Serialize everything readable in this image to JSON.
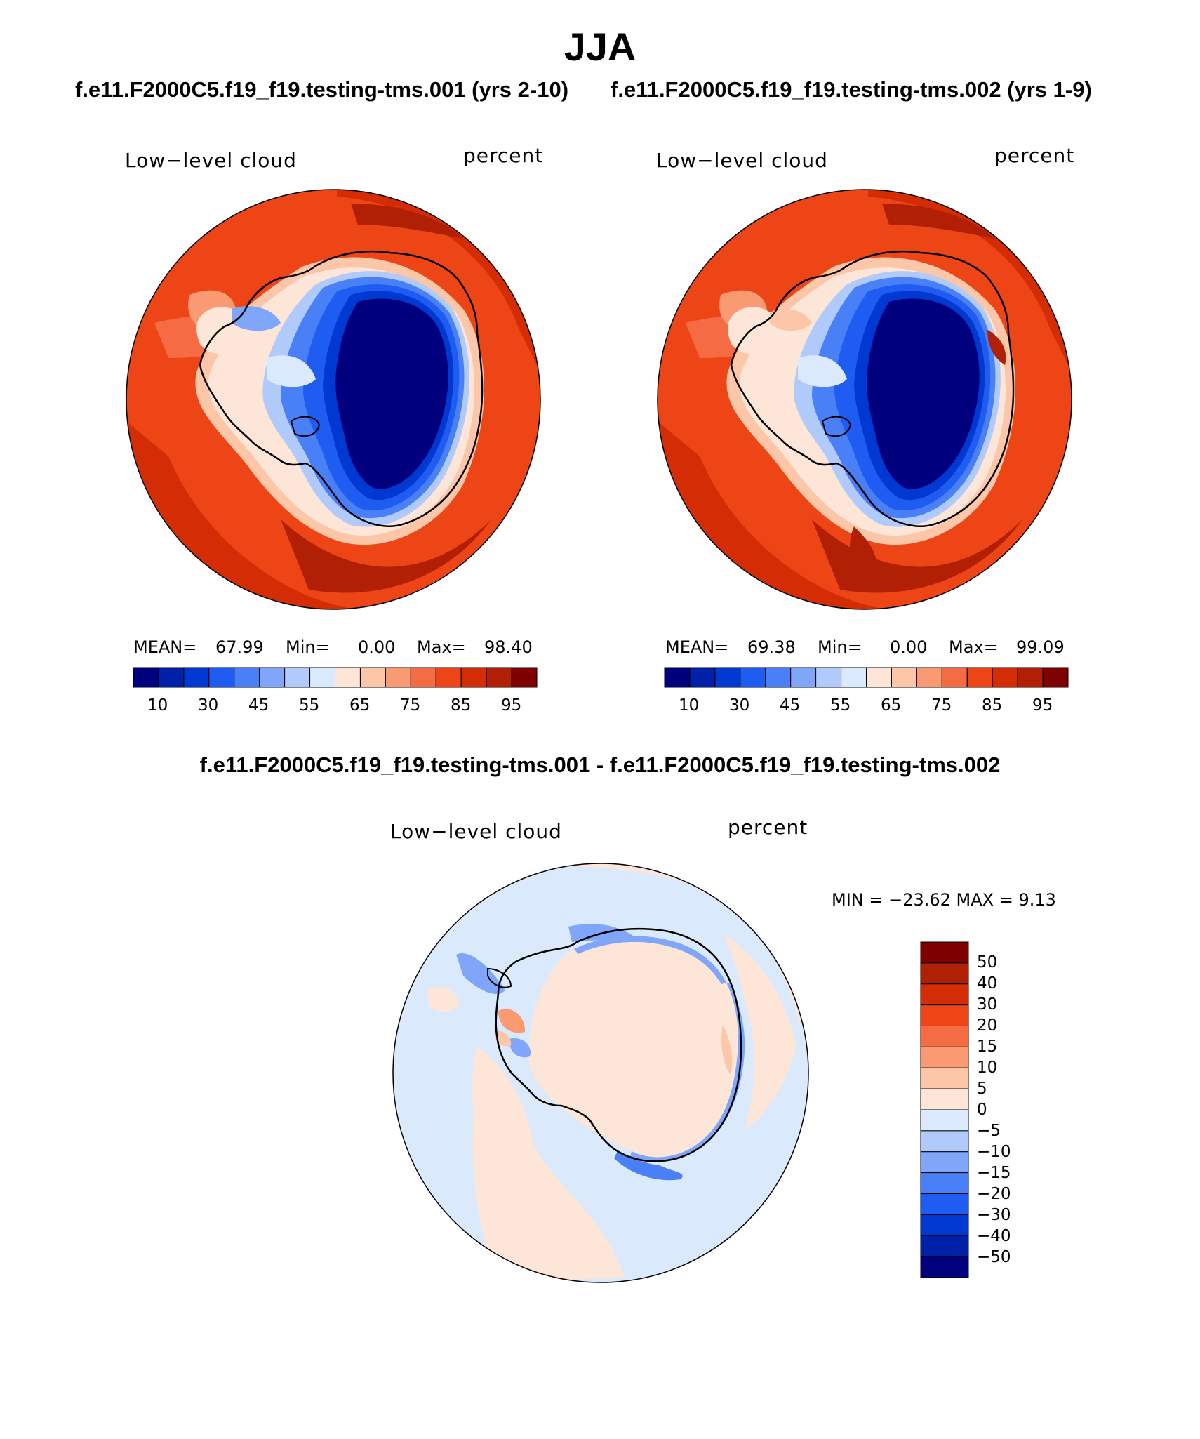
{
  "title": "JJA",
  "case_titles": {
    "left": "f.e11.F2000C5.f19_f19.testing-tms.001 (yrs 2-10)",
    "right": "f.e11.F2000C5.f19_f19.testing-tms.002 (yrs 1-9)"
  },
  "diff_title": "f.e11.F2000C5.f19_f19.testing-tms.001 - f.e11.F2000C5.f19_f19.testing-tms.002",
  "panels": [
    {
      "variable": "Low−level cloud",
      "units": "percent",
      "mean_label": "MEAN=",
      "mean": "67.99",
      "min_label": "Min=",
      "min": "0.00",
      "max_label": "Max=",
      "max": "98.40"
    },
    {
      "variable": "Low−level cloud",
      "units": "percent",
      "mean_label": "MEAN=",
      "mean": "69.38",
      "min_label": "Min=",
      "min": "0.00",
      "max_label": "Max=",
      "max": "99.09"
    }
  ],
  "diff_panel": {
    "variable": "Low−level cloud",
    "units": "percent",
    "minmax_text": "MIN = −23.62 MAX =    9.13"
  },
  "colors": {
    "field_scale": [
      "#00007f",
      "#0020a8",
      "#0038d2",
      "#1f5cf2",
      "#4a80f7",
      "#7fa6f9",
      "#b0cbfb",
      "#dbe9fd",
      "#fde6d7",
      "#fcc6a8",
      "#f99a73",
      "#f56b43",
      "#ed4516",
      "#d42d06",
      "#b11f04",
      "#7f0000"
    ],
    "diff_scale": [
      "#7f0000",
      "#b11f04",
      "#d42d06",
      "#ed4516",
      "#f56b43",
      "#f99a73",
      "#fcc6a8",
      "#fde6d7",
      "#dbe9fd",
      "#b0cbfb",
      "#7fa6f9",
      "#4a80f7",
      "#1f5cf2",
      "#0038d2",
      "#0020a8",
      "#00007f"
    ]
  },
  "chart_data": [
    {
      "type": "heatmap",
      "title": "f.e11.F2000C5.f19_f19.testing-tms.001 (yrs 2-10)",
      "projection": "south polar stereographic",
      "variable": "Low−level cloud",
      "units": "percent",
      "mean": 67.99,
      "min": 0.0,
      "max": 98.4,
      "colorbar_ticks": [
        "10",
        "30",
        "45",
        "55",
        "65",
        "75",
        "85",
        "95"
      ]
    },
    {
      "type": "heatmap",
      "title": "f.e11.F2000C5.f19_f19.testing-tms.002 (yrs 1-9)",
      "projection": "south polar stereographic",
      "variable": "Low−level cloud",
      "units": "percent",
      "mean": 69.38,
      "min": 0.0,
      "max": 99.09,
      "colorbar_ticks": [
        "10",
        "30",
        "45",
        "55",
        "65",
        "75",
        "85",
        "95"
      ]
    },
    {
      "type": "heatmap",
      "title": "f.e11.F2000C5.f19_f19.testing-tms.001 - f.e11.F2000C5.f19_f19.testing-tms.002",
      "projection": "south polar stereographic",
      "variable": "Low−level cloud",
      "units": "percent",
      "min": -23.62,
      "max": 9.13,
      "colorbar_ticks": [
        "50",
        "40",
        "30",
        "20",
        "15",
        "10",
        "5",
        "0",
        "−5",
        "−10",
        "−15",
        "−20",
        "−30",
        "−40",
        "−50"
      ]
    }
  ]
}
